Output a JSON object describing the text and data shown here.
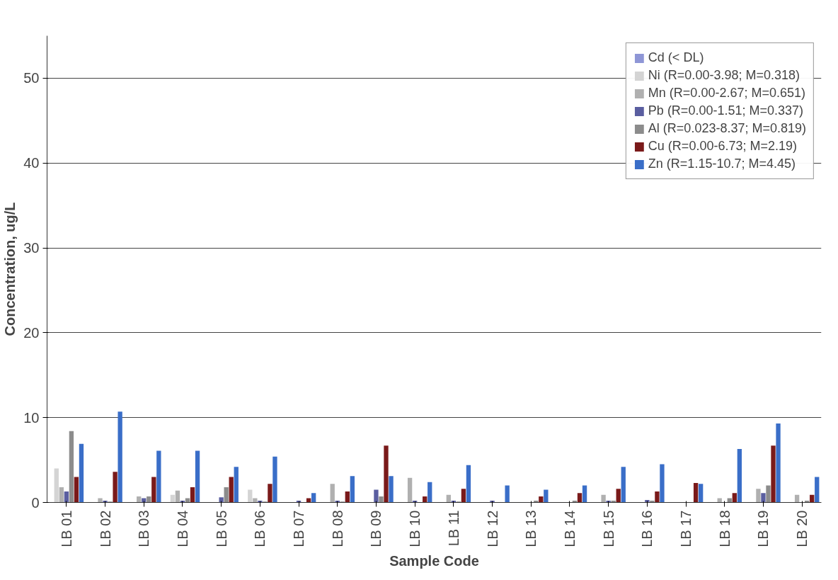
{
  "chart_data": {
    "type": "bar",
    "xlabel": "Sample Code",
    "ylabel": "Concentration, ug/L",
    "categories": [
      "LB 01",
      "LB 02",
      "LB 03",
      "LB 04",
      "LB 05",
      "LB 06",
      "LB 07",
      "LB 08",
      "LB 09",
      "LB 10",
      "LB 11",
      "LB 12",
      "LB 13",
      "LB 14",
      "LB 15",
      "LB 16",
      "LB 17",
      "LB 18",
      "LB 19",
      "LB 20"
    ],
    "series": [
      {
        "name": "Cd (< DL)",
        "color": "#8e96d6",
        "values": [
          null,
          null,
          null,
          null,
          null,
          null,
          null,
          null,
          null,
          null,
          null,
          null,
          null,
          null,
          null,
          null,
          null,
          null,
          null,
          null
        ]
      },
      {
        "name": "Ni (R=0.00-3.98; M=0.318)",
        "color": "#d4d4d4",
        "values": [
          4.0,
          null,
          null,
          0.9,
          null,
          1.5,
          null,
          null,
          null,
          null,
          null,
          null,
          null,
          null,
          null,
          null,
          null,
          null,
          null,
          null
        ]
      },
      {
        "name": "Mn (R=0.00-2.67; M=0.651)",
        "color": "#b0b0b0",
        "values": [
          1.8,
          0.5,
          0.7,
          1.4,
          null,
          0.5,
          null,
          2.2,
          null,
          2.9,
          0.9,
          null,
          null,
          null,
          0.9,
          null,
          null,
          0.5,
          1.6,
          0.9
        ]
      },
      {
        "name": "Pb (R=0.00-1.51; M=0.337)",
        "color": "#5a5ea0",
        "values": [
          1.3,
          0.2,
          0.5,
          0.2,
          0.6,
          0.2,
          0.2,
          0.2,
          1.5,
          0.2,
          0.2,
          0.2,
          null,
          null,
          0.2,
          0.3,
          null,
          null,
          1.1,
          null
        ]
      },
      {
        "name": "Al (R=0.023-8.37; M=0.819)",
        "color": "#8c8c8c",
        "values": [
          8.4,
          0.1,
          0.7,
          0.5,
          1.8,
          0.1,
          null,
          0.1,
          0.7,
          null,
          0.1,
          null,
          0.2,
          0.2,
          0.2,
          0.2,
          null,
          0.5,
          2.0,
          0.2
        ]
      },
      {
        "name": "Cu (R=0.00-6.73; M=2.19)",
        "color": "#7a1a1a",
        "values": [
          3.0,
          3.6,
          3.0,
          1.8,
          3.0,
          2.2,
          0.5,
          1.3,
          6.7,
          0.7,
          1.6,
          null,
          0.7,
          1.1,
          1.6,
          1.3,
          2.3,
          1.1,
          6.7,
          0.9
        ]
      },
      {
        "name": "Zn (R=1.15-10.7; M=4.45)",
        "color": "#3a6ec8",
        "values": [
          6.9,
          10.7,
          6.1,
          6.1,
          4.2,
          5.4,
          1.1,
          3.1,
          3.1,
          2.4,
          4.4,
          2.0,
          1.5,
          2.0,
          4.2,
          4.5,
          2.2,
          6.3,
          9.3,
          3.0
        ]
      }
    ],
    "ylim": [
      0,
      55
    ],
    "yticks": [
      0,
      10,
      20,
      30,
      40,
      50
    ],
    "grid": "y",
    "legend": "top right"
  }
}
